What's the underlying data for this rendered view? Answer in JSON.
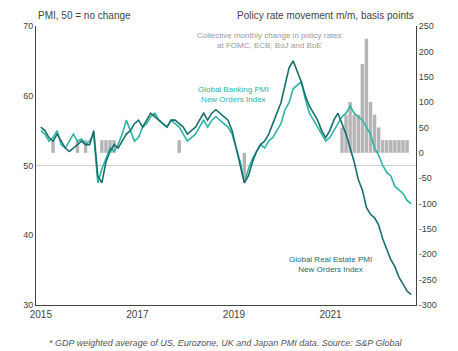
{
  "chart_data": {
    "type": "line",
    "ylabel": "PMI, 50 = no change",
    "y2label": "Policy rate movement m/m, basis points",
    "annotations": [
      {
        "text": "Collective monthly change in policy rates\nat FOMC, ECB, BoJ and BoE",
        "color": "#999999"
      },
      {
        "text": "Global Banking PMI\nNew Orders Index",
        "color": "#2ab5a3"
      },
      {
        "text": "Global Real Estate PMI\nNew Orders Index",
        "color": "#1a6e6e"
      },
      {
        "text": "* GDP weighted average of US, Eurozone, UK and Japan PMI data. Source: S&P Global",
        "color": "#555555"
      }
    ],
    "x": [
      2015.0,
      2015.0843,
      2015.1686,
      2015.2529,
      2015.3371,
      2015.4214,
      2015.5057,
      2015.59,
      2015.6743,
      2015.7586,
      2015.8429,
      2015.9271,
      2016.0114,
      2016.0957,
      2016.18,
      2016.2643,
      2016.3486,
      2016.4329,
      2016.5171,
      2016.6014,
      2016.6857,
      2016.77,
      2016.8543,
      2016.9386,
      2017.0229,
      2017.1071,
      2017.1914,
      2017.2757,
      2017.36,
      2017.4443,
      2017.5286,
      2017.6129,
      2017.6971,
      2017.7814,
      2017.8657,
      2017.95,
      2018.0343,
      2018.1186,
      2018.2029,
      2018.2871,
      2018.3714,
      2018.4557,
      2018.54,
      2018.6243,
      2018.7086,
      2018.7929,
      2018.8771,
      2018.9614,
      2019.0457,
      2019.13,
      2019.2143,
      2019.2986,
      2019.3829,
      2019.4671,
      2019.5514,
      2019.6357,
      2019.72,
      2019.8043,
      2019.8886,
      2019.9729,
      2020.0571,
      2020.1414,
      2020.2257,
      2020.31,
      2020.3943,
      2020.4786,
      2020.5629,
      2020.6471,
      2020.7314,
      2020.8157,
      2020.9,
      2020.9843,
      2021.0686,
      2021.1529,
      2021.2371,
      2021.3214,
      2021.4057,
      2021.49,
      2021.5743,
      2021.6586,
      2021.7429,
      2021.8271,
      2021.9114,
      2021.9957,
      2022.08,
      2022.1643,
      2022.2486,
      2022.3329,
      2022.4171,
      2022.5014,
      2022.5857,
      2022.67
    ],
    "series": [
      {
        "type": "line",
        "color": "#2ab5a3",
        "values": [
          55.0,
          54.5,
          53.5,
          54.0,
          55.0,
          53.0,
          52.5,
          53.5,
          54.5,
          53.5,
          53.8,
          53.0,
          53.5,
          54.5,
          47.5,
          49.5,
          51.0,
          52.5,
          52.0,
          53.0,
          54.5,
          56.5,
          55.0,
          53.5,
          54.0,
          55.5,
          56.0,
          57.0,
          57.5,
          56.5,
          56.0,
          55.5,
          56.5,
          56.0,
          55.5,
          54.5,
          53.5,
          54.0,
          54.5,
          55.5,
          56.5,
          55.5,
          56.5,
          57.0,
          56.5,
          56.0,
          55.5,
          54.5,
          52.5,
          50.5,
          47.5,
          49.5,
          51.0,
          52.0,
          53.0,
          52.5,
          53.5,
          54.0,
          55.0,
          56.0,
          58.0,
          59.0,
          61.0,
          61.5,
          62.0,
          59.5,
          57.5,
          56.5,
          55.5,
          54.5,
          53.5,
          54.0,
          55.0,
          56.0,
          57.0,
          57.5,
          58.5,
          57.5,
          57.0,
          56.5,
          55.5,
          54.5,
          52.5,
          51.5,
          50.0,
          49.0,
          48.5,
          47.0,
          46.5,
          46.0,
          45.0,
          44.5
        ]
      },
      {
        "type": "line",
        "color": "#1a6e6e",
        "values": [
          55.5,
          55.0,
          54.0,
          53.5,
          54.5,
          53.5,
          52.5,
          52.0,
          52.5,
          53.0,
          53.5,
          53.0,
          53.0,
          55.0,
          48.5,
          47.5,
          50.5,
          52.0,
          53.0,
          52.5,
          53.5,
          54.5,
          55.0,
          56.0,
          56.5,
          55.5,
          56.5,
          57.5,
          57.0,
          56.5,
          56.0,
          55.5,
          56.5,
          56.5,
          56.0,
          55.5,
          54.5,
          55.0,
          55.5,
          56.5,
          57.5,
          56.5,
          57.5,
          58.0,
          57.5,
          57.0,
          56.5,
          55.0,
          52.5,
          50.0,
          47.5,
          48.5,
          50.5,
          52.0,
          53.0,
          53.5,
          54.5,
          56.0,
          57.5,
          59.0,
          61.5,
          64.0,
          65.0,
          63.5,
          62.0,
          60.0,
          58.5,
          57.5,
          56.5,
          55.0,
          54.0,
          55.0,
          56.5,
          57.5,
          56.0,
          54.5,
          52.5,
          50.5,
          48.0,
          46.5,
          44.0,
          43.0,
          42.5,
          41.5,
          39.5,
          38.0,
          36.5,
          35.5,
          34.0,
          33.0,
          32.0,
          31.5
        ]
      },
      {
        "type": "bar",
        "axis": "y2",
        "color": "#b5b5b5",
        "values": [
          0,
          0,
          0,
          25,
          0,
          0,
          0,
          0,
          0,
          25,
          0,
          25,
          0,
          0,
          0,
          25,
          25,
          25,
          25,
          0,
          0,
          0,
          0,
          0,
          0,
          0,
          0,
          0,
          0,
          0,
          0,
          0,
          0,
          0,
          25,
          0,
          0,
          0,
          0,
          0,
          0,
          0,
          0,
          0,
          0,
          0,
          0,
          0,
          0,
          0,
          -50,
          0,
          0,
          0,
          0,
          0,
          0,
          0,
          0,
          0,
          0,
          0,
          0,
          0,
          0,
          0,
          0,
          0,
          0,
          0,
          0,
          0,
          0,
          0,
          50,
          75,
          100,
          75,
          75,
          175,
          225,
          100,
          75,
          50,
          25,
          25,
          25,
          25,
          25,
          25,
          25,
          0
        ]
      }
    ],
    "xlim": [
      2014.9,
      2022.77
    ],
    "xticks": [
      2015,
      2017,
      2019,
      2021
    ],
    "ylim": [
      30,
      70
    ],
    "yticks": [
      30,
      40,
      50,
      60,
      70
    ],
    "y2lim": [
      -300,
      250
    ],
    "y2ticks": [
      -300,
      -250,
      -200,
      -150,
      -100,
      -50,
      0,
      50,
      100,
      150,
      200,
      250
    ],
    "hlines": [
      {
        "value": 50,
        "color": "#cccccc"
      }
    ],
    "grid": false
  }
}
